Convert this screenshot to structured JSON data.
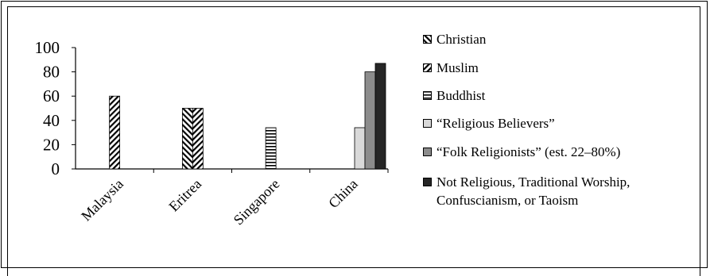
{
  "chart_data": {
    "type": "bar",
    "categories": [
      "Malaysia",
      "Eritrea",
      "Singapore",
      "China"
    ],
    "ylim": [
      0,
      100
    ],
    "yticks": [
      0,
      20,
      40,
      60,
      80,
      100
    ],
    "grid": false,
    "legend_position": "right",
    "series": [
      {
        "name": "Christian",
        "pattern": "diag-back",
        "color": "#000000",
        "values": [
          null,
          50,
          null,
          null
        ]
      },
      {
        "name": "Muslim",
        "pattern": "diag-fwd",
        "color": "#000000",
        "values": [
          60,
          50,
          null,
          null
        ]
      },
      {
        "name": "Buddhist",
        "pattern": "horizontal",
        "color": "#000000",
        "values": [
          null,
          null,
          34,
          null
        ]
      },
      {
        "name": "“Religious Believers”",
        "pattern": "solid",
        "color": "#d9d9d9",
        "values": [
          null,
          null,
          null,
          34
        ]
      },
      {
        "name": "“Folk Religionists” (est. 22–80%)",
        "pattern": "solid",
        "color": "#8c8c8c",
        "values": [
          null,
          null,
          null,
          80
        ]
      },
      {
        "name": "Not Religious, Traditional Worship,\nConfuscianism, or Taoism",
        "pattern": "solid",
        "color": "#262626",
        "values": [
          null,
          null,
          null,
          87
        ]
      }
    ]
  }
}
